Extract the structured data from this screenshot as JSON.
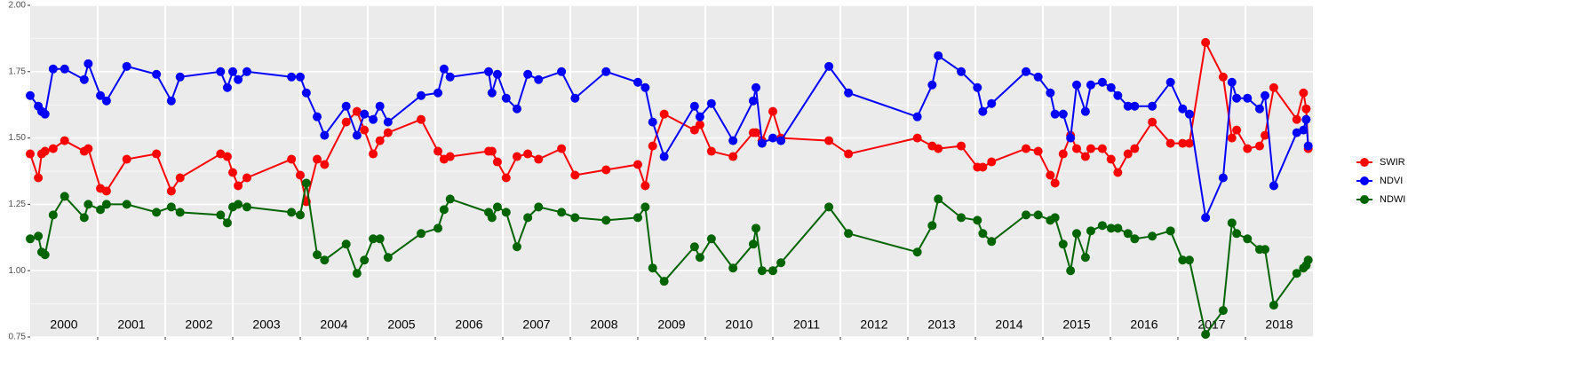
{
  "chart_data": {
    "type": "line",
    "x": [
      2000.0,
      2000.12,
      2000.17,
      2000.22,
      2000.34,
      2000.51,
      2000.8,
      2000.86,
      2001.04,
      2001.13,
      2001.43,
      2001.87,
      2002.09,
      2002.22,
      2002.82,
      2002.92,
      2003.0,
      2003.08,
      2003.21,
      2003.87,
      2004.0,
      2004.09,
      2004.25,
      2004.36,
      2004.68,
      2004.84,
      2004.95,
      2005.08,
      2005.18,
      2005.3,
      2005.79,
      2006.04,
      2006.13,
      2006.22,
      2006.79,
      2006.84,
      2006.92,
      2007.05,
      2007.21,
      2007.37,
      2007.53,
      2007.87,
      2008.07,
      2008.53,
      2009.0,
      2009.11,
      2009.22,
      2009.39,
      2009.84,
      2009.92,
      2010.09,
      2010.41,
      2010.71,
      2010.75,
      2010.84,
      2011.0,
      2011.12,
      2011.83,
      2012.12,
      2013.14,
      2013.36,
      2013.45,
      2013.79,
      2014.03,
      2014.11,
      2014.24,
      2014.75,
      2014.93,
      2015.11,
      2015.18,
      2015.3,
      2015.41,
      2015.5,
      2015.63,
      2015.71,
      2015.88,
      2016.01,
      2016.11,
      2016.26,
      2016.36,
      2016.62,
      2016.89,
      2017.07,
      2017.17,
      2017.41,
      2017.67,
      2017.8,
      2017.87,
      2018.03,
      2018.21,
      2018.29,
      2018.42,
      2018.76,
      2018.86,
      2018.9,
      2018.93
    ],
    "series": [
      {
        "name": "SWIR",
        "color": "#ff0000",
        "values": [
          1.44,
          1.35,
          1.44,
          1.45,
          1.46,
          1.49,
          1.45,
          1.46,
          1.31,
          1.3,
          1.42,
          1.44,
          1.3,
          1.35,
          1.44,
          1.43,
          1.37,
          1.32,
          1.35,
          1.42,
          1.36,
          1.26,
          1.42,
          1.4,
          1.56,
          1.6,
          1.53,
          1.44,
          1.49,
          1.52,
          1.57,
          1.45,
          1.42,
          1.43,
          1.45,
          1.45,
          1.41,
          1.35,
          1.43,
          1.44,
          1.42,
          1.46,
          1.36,
          1.38,
          1.4,
          1.32,
          1.47,
          1.59,
          1.53,
          1.55,
          1.45,
          1.43,
          1.52,
          1.52,
          1.49,
          1.6,
          1.5,
          1.49,
          1.44,
          1.5,
          1.47,
          1.46,
          1.47,
          1.39,
          1.39,
          1.41,
          1.46,
          1.45,
          1.36,
          1.33,
          1.44,
          1.51,
          1.46,
          1.43,
          1.46,
          1.46,
          1.42,
          1.37,
          1.44,
          1.46,
          1.56,
          1.48,
          1.48,
          1.48,
          1.86,
          1.73,
          1.5,
          1.53,
          1.46,
          1.47,
          1.51,
          1.69,
          1.57,
          1.67,
          1.61,
          1.46
        ]
      },
      {
        "name": "NDVI",
        "color": "#0000ff",
        "values": [
          1.66,
          1.62,
          1.6,
          1.59,
          1.76,
          1.76,
          1.72,
          1.78,
          1.66,
          1.64,
          1.77,
          1.74,
          1.64,
          1.73,
          1.75,
          1.69,
          1.75,
          1.72,
          1.75,
          1.73,
          1.73,
          1.67,
          1.58,
          1.51,
          1.62,
          1.51,
          1.59,
          1.57,
          1.62,
          1.56,
          1.66,
          1.67,
          1.76,
          1.73,
          1.75,
          1.67,
          1.74,
          1.65,
          1.61,
          1.74,
          1.72,
          1.75,
          1.65,
          1.75,
          1.71,
          1.69,
          1.56,
          1.43,
          1.62,
          1.58,
          1.63,
          1.49,
          1.64,
          1.69,
          1.48,
          1.5,
          1.49,
          1.77,
          1.67,
          1.58,
          1.7,
          1.81,
          1.75,
          1.69,
          1.6,
          1.63,
          1.75,
          1.73,
          1.67,
          1.59,
          1.59,
          1.5,
          1.7,
          1.6,
          1.7,
          1.71,
          1.69,
          1.66,
          1.62,
          1.62,
          1.62,
          1.71,
          1.61,
          1.59,
          1.2,
          1.35,
          1.71,
          1.65,
          1.65,
          1.61,
          1.66,
          1.32,
          1.52,
          1.53,
          1.57,
          1.47
        ]
      },
      {
        "name": "NDWI",
        "color": "#006400",
        "values": [
          1.12,
          1.13,
          1.07,
          1.06,
          1.21,
          1.28,
          1.2,
          1.25,
          1.23,
          1.25,
          1.25,
          1.22,
          1.24,
          1.22,
          1.21,
          1.18,
          1.24,
          1.25,
          1.24,
          1.22,
          1.21,
          1.33,
          1.06,
          1.04,
          1.1,
          0.99,
          1.04,
          1.12,
          1.12,
          1.05,
          1.14,
          1.16,
          1.23,
          1.27,
          1.22,
          1.2,
          1.24,
          1.22,
          1.09,
          1.2,
          1.24,
          1.22,
          1.2,
          1.19,
          1.2,
          1.24,
          1.01,
          0.96,
          1.09,
          1.05,
          1.12,
          1.01,
          1.1,
          1.16,
          1.0,
          1.0,
          1.03,
          1.24,
          1.14,
          1.07,
          1.17,
          1.27,
          1.2,
          1.19,
          1.14,
          1.11,
          1.21,
          1.21,
          1.19,
          1.2,
          1.1,
          1.0,
          1.14,
          1.05,
          1.15,
          1.17,
          1.16,
          1.16,
          1.14,
          1.12,
          1.13,
          1.15,
          1.04,
          1.04,
          0.76,
          0.85,
          1.18,
          1.14,
          1.12,
          1.08,
          1.08,
          0.87,
          0.99,
          1.01,
          1.02,
          1.04
        ]
      }
    ],
    "xlim": [
      2000,
      2019
    ],
    "xticks": [
      2001,
      2002,
      2003,
      2004,
      2005,
      2006,
      2007,
      2008,
      2009,
      2010,
      2011,
      2012,
      2013,
      2014,
      2015,
      2016,
      2017,
      2018
    ],
    "year_labels": [
      "2000",
      "2001",
      "2002",
      "2003",
      "2004",
      "2005",
      "2006",
      "2007",
      "2008",
      "2009",
      "2010",
      "2011",
      "2012",
      "2013",
      "2014",
      "2015",
      "2016",
      "2017",
      "2018"
    ],
    "ylim": [
      0.75,
      2.0
    ],
    "yticks": [
      {
        "value": 0.75,
        "label": "0.75"
      },
      {
        "value": 1.0,
        "label": "1.00"
      },
      {
        "value": 1.25,
        "label": "1.25"
      },
      {
        "value": 1.5,
        "label": "1.50"
      },
      {
        "value": 1.75,
        "label": "1.75"
      },
      {
        "value": 2.0,
        "label": "2.00"
      }
    ],
    "grid": true,
    "legend": "right"
  }
}
